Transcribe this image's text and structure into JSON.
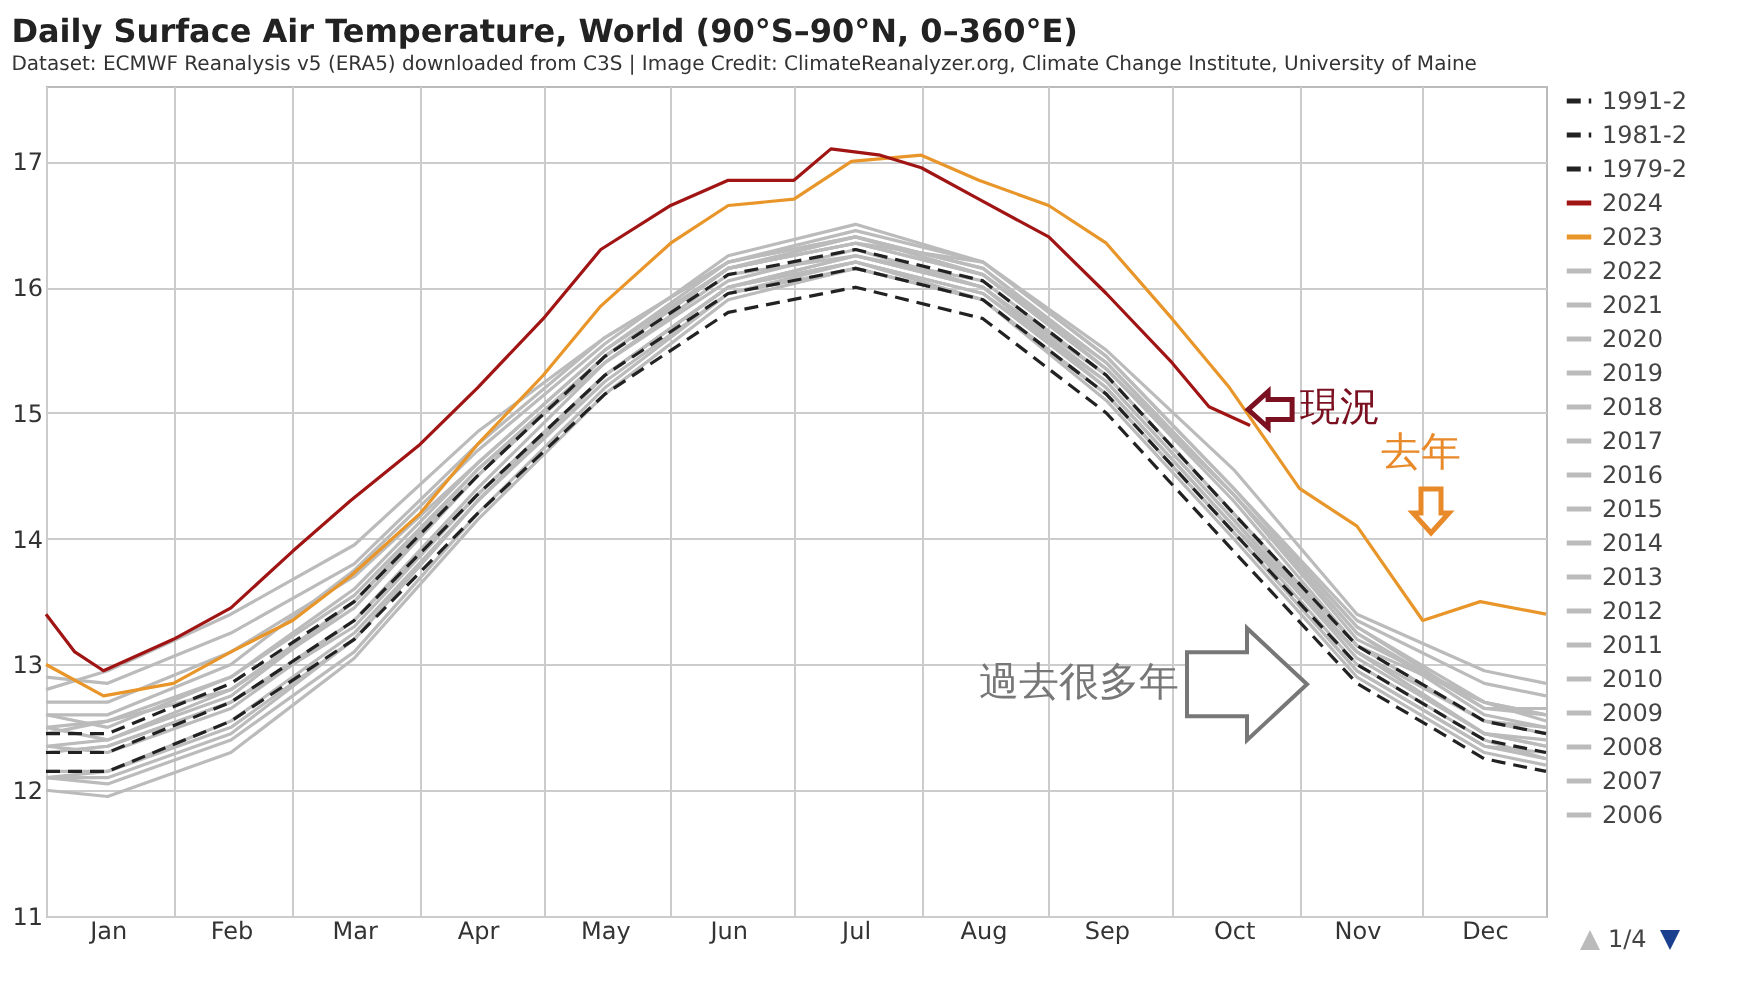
{
  "chart_data": {
    "type": "line",
    "title": "Daily Surface Air Temperature, World (90°S–90°N, 0–360°E)",
    "subtitle": "Dataset: ECMWF Reanalysis v5 (ERA5) downloaded from C3S | Image Credit: ClimateReanalyzer.org, Climate Change Institute, University of Maine",
    "x": [
      "--01-01",
      "--01-16",
      "--02-15",
      "--03-16",
      "--04-15",
      "--05-16",
      "--06-15",
      "--07-16",
      "--08-16",
      "--09-15",
      "--10-16",
      "--11-15",
      "--12-16",
      "--12-31"
    ],
    "xlim": [
      "--01-01",
      "--12-31"
    ],
    "xticks": [
      {
        "value": "--01-01",
        "label": null
      },
      {
        "value": "--01-16",
        "label": "Jan"
      },
      {
        "value": "--02-01",
        "label": null
      },
      {
        "value": "--02-15",
        "label": "Feb"
      },
      {
        "value": "--03-01",
        "label": null
      },
      {
        "value": "--03-16",
        "label": "Mar"
      },
      {
        "value": "--04-01",
        "label": null
      },
      {
        "value": "--04-15",
        "label": "Apr"
      },
      {
        "value": "--05-01",
        "label": null
      },
      {
        "value": "--05-16",
        "label": "May"
      },
      {
        "value": "--06-01",
        "label": null
      },
      {
        "value": "--06-15",
        "label": "Jun"
      },
      {
        "value": "--07-01",
        "label": null
      },
      {
        "value": "--07-16",
        "label": "Jul"
      },
      {
        "value": "--08-01",
        "label": null
      },
      {
        "value": "--08-16",
        "label": "Aug"
      },
      {
        "value": "--09-01",
        "label": null
      },
      {
        "value": "--09-15",
        "label": "Sep"
      },
      {
        "value": "--10-01",
        "label": null
      },
      {
        "value": "--10-16",
        "label": "Oct"
      },
      {
        "value": "--11-01",
        "label": null
      },
      {
        "value": "--11-15",
        "label": "Nov"
      },
      {
        "value": "--12-01",
        "label": null
      },
      {
        "value": "--12-16",
        "label": "Dec"
      }
    ],
    "ylim": [
      11,
      17.6
    ],
    "yticks": [
      11,
      12,
      13,
      14,
      15,
      16,
      17
    ],
    "grid": true,
    "legend": "right",
    "series": [
      {
        "name": "1991-2",
        "color": "#222222",
        "line_style": "dashed",
        "values": [
          12.45,
          12.45,
          12.85,
          13.5,
          14.5,
          15.45,
          16.1,
          16.3,
          16.05,
          15.3,
          14.2,
          13.15,
          12.55,
          12.45
        ]
      },
      {
        "name": "1981-2",
        "color": "#222222",
        "line_style": "dashed",
        "values": [
          12.3,
          12.3,
          12.7,
          13.35,
          14.35,
          15.3,
          15.95,
          16.15,
          15.9,
          15.15,
          14.05,
          13.0,
          12.4,
          12.3
        ]
      },
      {
        "name": "1979-2",
        "color": "#222222",
        "line_style": "dashed",
        "values": [
          12.15,
          12.15,
          12.55,
          13.2,
          14.2,
          15.15,
          15.8,
          16.0,
          15.75,
          15.0,
          13.9,
          12.85,
          12.25,
          12.15
        ]
      },
      {
        "name": "2024",
        "color": "#a01414",
        "x": [
          "--01-01",
          "--01-08",
          "--01-15",
          "--02-01",
          "--02-15",
          "--03-01",
          "--03-15",
          "--04-01",
          "--04-15",
          "--05-01",
          "--05-15",
          "--06-01",
          "--06-15",
          "--07-01",
          "--07-10",
          "--07-22",
          "--08-01",
          "--08-15",
          "--09-01",
          "--09-15",
          "--10-01",
          "--10-10",
          "--10-20"
        ],
        "values": [
          13.4,
          13.1,
          12.95,
          13.2,
          13.45,
          13.9,
          14.3,
          14.75,
          15.2,
          15.75,
          16.3,
          16.65,
          16.85,
          16.85,
          17.1,
          17.05,
          16.95,
          16.7,
          16.4,
          15.95,
          15.4,
          15.05,
          14.9
        ]
      },
      {
        "name": "2023",
        "color": "#e8952a",
        "x": [
          "--01-01",
          "--01-15",
          "--02-01",
          "--02-15",
          "--03-01",
          "--03-15",
          "--04-01",
          "--04-15",
          "--05-01",
          "--05-15",
          "--06-01",
          "--06-15",
          "--07-01",
          "--07-15",
          "--08-01",
          "--08-15",
          "--09-01",
          "--09-15",
          "--10-01",
          "--10-15",
          "--11-01",
          "--11-15",
          "--12-01",
          "--12-15",
          "--12-31"
        ],
        "values": [
          13.0,
          12.75,
          12.85,
          13.1,
          13.35,
          13.7,
          14.2,
          14.75,
          15.3,
          15.85,
          16.35,
          16.65,
          16.7,
          17.0,
          17.05,
          16.85,
          16.65,
          16.35,
          15.75,
          15.2,
          14.4,
          14.1,
          13.35,
          13.5,
          13.4
        ]
      },
      {
        "name": "2022",
        "color": "#bbbbbb",
        "values": [
          12.6,
          12.5,
          12.9,
          13.6,
          14.6,
          15.5,
          16.2,
          16.45,
          16.2,
          15.45,
          14.4,
          13.3,
          12.7,
          12.6
        ]
      },
      {
        "name": "2021",
        "color": "#bbbbbb",
        "values": [
          12.5,
          12.55,
          12.8,
          13.45,
          14.5,
          15.45,
          16.15,
          16.35,
          16.1,
          15.4,
          14.35,
          13.3,
          12.65,
          12.65
        ]
      },
      {
        "name": "2020",
        "color": "#bbbbbb",
        "values": [
          12.9,
          12.85,
          13.25,
          13.8,
          14.75,
          15.6,
          16.2,
          16.4,
          16.15,
          15.35,
          14.35,
          13.2,
          12.7,
          12.55
        ]
      },
      {
        "name": "2019",
        "color": "#bbbbbb",
        "values": [
          12.6,
          12.6,
          13.0,
          13.75,
          14.7,
          15.55,
          16.25,
          16.5,
          16.2,
          15.45,
          14.4,
          13.35,
          12.85,
          12.75
        ]
      },
      {
        "name": "2018",
        "color": "#bbbbbb",
        "values": [
          12.5,
          12.4,
          12.75,
          13.5,
          14.55,
          15.45,
          16.15,
          16.4,
          16.1,
          15.35,
          14.3,
          13.15,
          12.7,
          12.6
        ]
      },
      {
        "name": "2017",
        "color": "#bbbbbb",
        "values": [
          12.7,
          12.7,
          13.1,
          13.7,
          14.6,
          15.5,
          16.15,
          16.35,
          16.1,
          15.35,
          14.35,
          13.25,
          12.6,
          12.5
        ]
      },
      {
        "name": "2016",
        "color": "#bbbbbb",
        "values": [
          12.8,
          12.95,
          13.4,
          13.95,
          14.85,
          15.6,
          16.2,
          16.4,
          16.15,
          15.4,
          14.35,
          13.25,
          12.65,
          12.6
        ]
      },
      {
        "name": "2015",
        "color": "#bbbbbb",
        "values": [
          12.35,
          12.4,
          12.8,
          13.5,
          14.5,
          15.45,
          16.15,
          16.35,
          16.2,
          15.5,
          14.55,
          13.4,
          12.95,
          12.85
        ]
      },
      {
        "name": "2014",
        "color": "#bbbbbb",
        "values": [
          12.35,
          12.3,
          12.65,
          13.35,
          14.4,
          15.4,
          16.1,
          16.25,
          16.0,
          15.3,
          14.2,
          13.1,
          12.55,
          12.45
        ]
      },
      {
        "name": "2013",
        "color": "#bbbbbb",
        "values": [
          12.3,
          12.35,
          12.7,
          13.3,
          14.35,
          15.3,
          16.0,
          16.2,
          15.95,
          15.25,
          14.15,
          13.1,
          12.45,
          12.35
        ]
      },
      {
        "name": "2012",
        "color": "#bbbbbb",
        "values": [
          12.1,
          12.1,
          12.45,
          13.2,
          14.3,
          15.3,
          16.0,
          16.25,
          16.0,
          15.25,
          14.15,
          13.05,
          12.45,
          12.4
        ]
      },
      {
        "name": "2011",
        "color": "#bbbbbb",
        "values": [
          12.1,
          12.05,
          12.4,
          13.1,
          14.2,
          15.2,
          15.95,
          16.15,
          15.9,
          15.15,
          14.05,
          12.95,
          12.35,
          12.3
        ]
      },
      {
        "name": "2010",
        "color": "#bbbbbb",
        "values": [
          12.45,
          12.55,
          12.9,
          13.55,
          14.55,
          15.4,
          16.05,
          16.3,
          16.0,
          15.2,
          14.1,
          13.1,
          12.45,
          12.35
        ]
      },
      {
        "name": "2009",
        "color": "#bbbbbb",
        "values": [
          12.15,
          12.15,
          12.5,
          13.2,
          14.3,
          15.3,
          16.0,
          16.25,
          16.05,
          15.3,
          14.2,
          13.15,
          12.55,
          12.5
        ]
      },
      {
        "name": "2008",
        "color": "#bbbbbb",
        "values": [
          12.0,
          11.95,
          12.3,
          13.05,
          14.15,
          15.15,
          15.9,
          16.15,
          15.9,
          15.15,
          14.05,
          12.95,
          12.35,
          12.25
        ]
      },
      {
        "name": "2007",
        "color": "#bbbbbb",
        "values": [
          12.3,
          12.35,
          12.7,
          13.35,
          14.35,
          15.3,
          16.0,
          16.2,
          15.9,
          15.1,
          14.0,
          12.9,
          12.3,
          12.2
        ]
      },
      {
        "name": "2006",
        "color": "#bbbbbb",
        "values": [
          12.1,
          12.15,
          12.55,
          13.25,
          14.3,
          15.25,
          15.95,
          16.2,
          15.95,
          15.2,
          14.1,
          13.0,
          12.4,
          12.25
        ]
      }
    ],
    "annotations": [
      {
        "text": "現況",
        "x": "--10-20",
        "y": 14.9
      },
      "去年",
      "過去很多年",
      "1/4"
    ]
  }
}
